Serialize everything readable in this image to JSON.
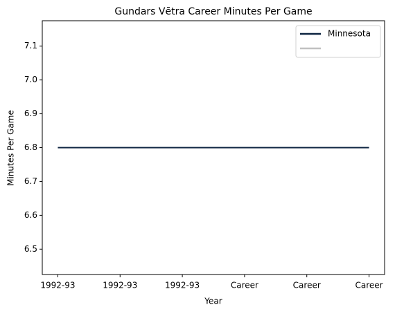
{
  "chart_data": {
    "type": "line",
    "title": "Gundars Vētra Career Minutes Per Game",
    "x_label": "Year",
    "y_label": "Minutes Per Game",
    "categories": [
      "1992-93",
      "1992-93",
      "1992-93",
      "Career",
      "Career",
      "Career"
    ],
    "series": [
      {
        "name": "Minnesota",
        "color": "#0c2340",
        "values": [
          6.8,
          6.8,
          6.8,
          6.8,
          6.8,
          6.8
        ]
      },
      {
        "color": "#c0c0c0",
        "values": [
          null,
          null,
          null,
          null,
          null,
          null
        ]
      }
    ],
    "ylim": [
      6.425,
      7.175
    ],
    "yticks": [
      6.5,
      6.6,
      6.7,
      6.8,
      6.9,
      {
        "value": 7,
        "label": "7.0"
      },
      7.1
    ],
    "legend": "upper right"
  }
}
